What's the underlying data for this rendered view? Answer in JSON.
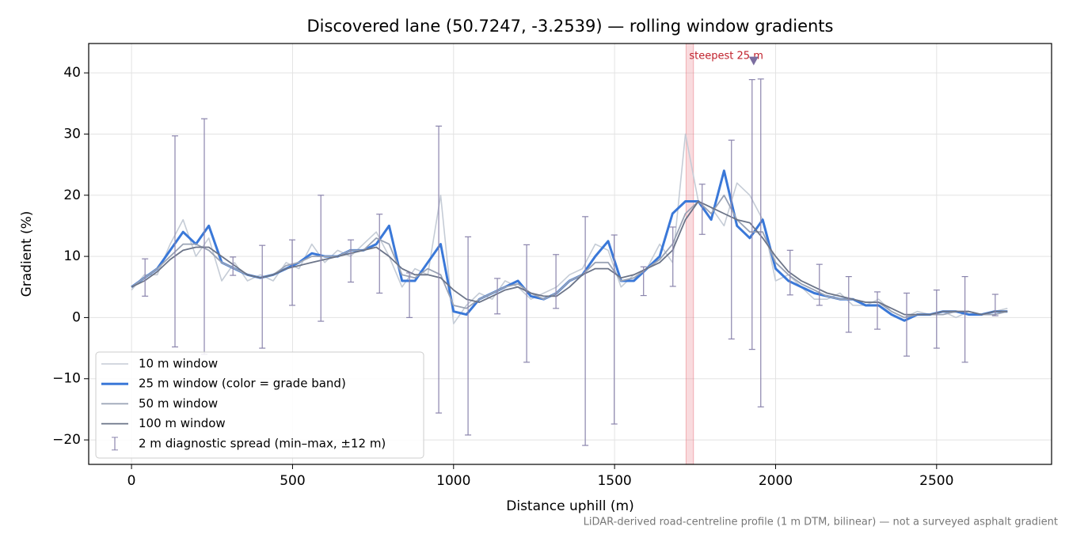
{
  "chart_data": {
    "type": "line",
    "title": "Discovered lane (50.7247, -3.2539) — rolling window gradients",
    "x_label": "Distance uphill (m)",
    "y_label": "Gradient (%)",
    "footnote": "LiDAR-derived road-centreline profile (1 m DTM, bilinear) — not a surveyed asphalt gradient",
    "xlim": [
      -133,
      2857
    ],
    "ylim": [
      -24,
      44.8
    ],
    "xticks": [
      0,
      500,
      1000,
      1500,
      2000,
      2500
    ],
    "yticks": [
      {
        "value": -20,
        "label": "−20"
      },
      {
        "value": -10,
        "label": "−10"
      },
      0,
      10,
      20,
      30,
      40
    ],
    "grid": true,
    "legend": "lower left",
    "x": [
      0,
      40,
      80,
      120,
      160,
      200,
      240,
      280,
      320,
      360,
      400,
      440,
      480,
      520,
      560,
      600,
      640,
      680,
      720,
      760,
      800,
      840,
      880,
      920,
      960,
      1000,
      1040,
      1080,
      1120,
      1160,
      1200,
      1240,
      1280,
      1320,
      1360,
      1400,
      1440,
      1480,
      1520,
      1560,
      1600,
      1640,
      1680,
      1720,
      1760,
      1800,
      1840,
      1880,
      1920,
      1960,
      2000,
      2040,
      2080,
      2120,
      2160,
      2200,
      2240,
      2280,
      2320,
      2360,
      2400,
      2440,
      2480,
      2520,
      2560,
      2600,
      2640,
      2680,
      2720
    ],
    "series": [
      {
        "name": "10 m window",
        "color": "#c5ccd6",
        "width": 1.6,
        "values": [
          4.5,
          7,
          7,
          12,
          16,
          10,
          13,
          6,
          9,
          6,
          7,
          6,
          9,
          8,
          12,
          9,
          11,
          10,
          12,
          14,
          10,
          5,
          8,
          7,
          20,
          -1,
          2,
          4,
          3,
          6,
          5,
          3,
          4,
          5,
          7,
          8,
          12,
          11,
          5,
          7,
          8,
          12,
          9,
          30,
          19,
          18,
          15,
          22,
          20,
          16,
          6,
          7,
          5,
          3,
          3,
          4,
          2,
          2,
          3,
          1,
          0,
          1,
          0.5,
          1,
          0,
          1,
          0.5,
          1,
          1.5
        ]
      },
      {
        "name": "25 m window (color = grade band)",
        "color": "#3a78d8",
        "width": 3,
        "values": [
          5,
          6.5,
          8,
          11,
          14,
          12,
          15,
          9,
          8,
          7,
          6.5,
          7,
          8,
          9,
          10.5,
          10,
          10,
          11,
          11,
          12,
          15,
          6,
          6,
          9,
          12,
          1,
          0.5,
          3,
          4,
          5,
          6,
          3.5,
          3,
          4,
          6,
          7,
          10,
          12.5,
          6,
          6,
          8,
          10,
          17,
          19,
          19,
          16,
          24,
          15,
          13,
          16,
          8,
          6,
          5,
          4,
          3.5,
          3,
          3,
          2,
          2,
          0.5,
          -0.5,
          0.5,
          0.5,
          1,
          1,
          0.5,
          0.5,
          1,
          1
        ]
      },
      {
        "name": "50 m window",
        "color": "#9aa3b5",
        "width": 1.8,
        "values": [
          5,
          6.5,
          8,
          10,
          12,
          12,
          11,
          9,
          8,
          7,
          6.5,
          7,
          8.5,
          9,
          10,
          10,
          10,
          11,
          11,
          13,
          12,
          7,
          6.5,
          8,
          7,
          2,
          1.5,
          3,
          4,
          5,
          5.5,
          4,
          3,
          4,
          6,
          7,
          9,
          9,
          6,
          6.5,
          8,
          9.5,
          12,
          17,
          19,
          17,
          20,
          16,
          14,
          14,
          9,
          7,
          5.5,
          4.5,
          3.5,
          3,
          3,
          2.5,
          2.5,
          1,
          0,
          0.5,
          0.5,
          0.5,
          1,
          1,
          0.5,
          0.5,
          1
        ]
      },
      {
        "name": "100 m window",
        "color": "#6b7488",
        "width": 1.8,
        "values": [
          5,
          6,
          7.5,
          9.5,
          11,
          11.5,
          11.5,
          10,
          8.5,
          7,
          6.5,
          7,
          8,
          8.5,
          9,
          9.5,
          10,
          10.5,
          11,
          11.5,
          10,
          8,
          7,
          7,
          6.5,
          4.5,
          3,
          2.5,
          3.5,
          4.5,
          5,
          4,
          3.5,
          3.5,
          5,
          7,
          8,
          8,
          6.5,
          7,
          8,
          9,
          11,
          16,
          19,
          18,
          17,
          16,
          15.5,
          13,
          10,
          7.5,
          6,
          5,
          4,
          3.5,
          3,
          2.5,
          2.5,
          1.5,
          0.5,
          0.5,
          0.5,
          1,
          1,
          1,
          0.5,
          1,
          1
        ]
      }
    ],
    "spread": {
      "name": "2 m diagnostic spread (min–max, ±12 m)",
      "color": "#8b85ad",
      "x": [
        42,
        135,
        226,
        315,
        406,
        499,
        588,
        681,
        770,
        863,
        954,
        1045,
        1136,
        1227,
        1318,
        1409,
        1499,
        1590,
        1681,
        1772,
        1863,
        1927,
        1954,
        2045,
        2136,
        2227,
        2316,
        2407,
        2500,
        2588,
        2682
      ],
      "low": [
        3.5,
        -4.8,
        -6,
        6.9,
        -5,
        2,
        -0.6,
        5.8,
        4,
        0,
        -15.6,
        -19.2,
        0.6,
        -7.3,
        1.5,
        -20.9,
        -17.4,
        3.6,
        5.1,
        13.6,
        -3.5,
        -5.2,
        -14.6,
        3.7,
        2,
        -2.4,
        -1.9,
        -6.3,
        -5,
        -7.3,
        0.3
      ],
      "high": [
        9.6,
        29.7,
        32.5,
        9.9,
        11.8,
        12.7,
        20,
        12.7,
        16.9,
        7.3,
        31.3,
        13.2,
        6.4,
        11.9,
        10.3,
        16.5,
        13.5,
        8.3,
        14.8,
        21.8,
        29,
        38.9,
        39,
        11,
        8.7,
        6.7,
        4.2,
        4,
        4.5,
        6.7,
        3.8
      ]
    },
    "steepest": {
      "x0": 1722,
      "x1": 1745,
      "label": "steepest 25 m",
      "color": "#e8707a"
    },
    "peak_marker": {
      "x": 1932,
      "y": 42,
      "color": "#7c6ea0"
    }
  }
}
